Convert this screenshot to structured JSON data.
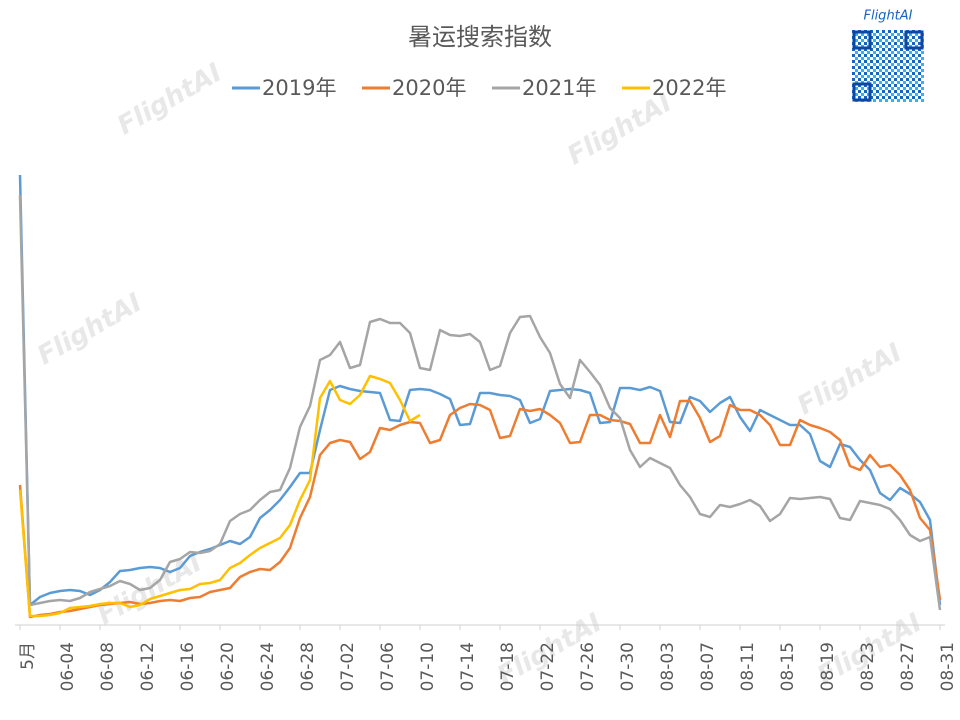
{
  "chart_data": {
    "type": "line",
    "title": "暑运搜索指数",
    "brand": "FlightAI",
    "watermark": "FlightAI",
    "categories": [
      "5月",
      null,
      null,
      null,
      "06-04",
      null,
      null,
      null,
      "06-08",
      null,
      null,
      null,
      "06-12",
      null,
      null,
      null,
      "06-16",
      null,
      null,
      null,
      "06-20",
      null,
      null,
      null,
      "06-24",
      null,
      null,
      null,
      "06-28",
      null,
      null,
      null,
      "07-02",
      null,
      null,
      null,
      "07-06",
      null,
      null,
      null,
      "07-10",
      null,
      null,
      null,
      "07-14",
      null,
      null,
      null,
      "07-18",
      null,
      null,
      null,
      "07-22",
      null,
      null,
      null,
      "07-26",
      null,
      null,
      null,
      "07-30",
      null,
      null,
      null,
      "08-03",
      null,
      null,
      null,
      "08-07",
      null,
      null,
      null,
      "08-11",
      null,
      null,
      null,
      "08-15",
      null,
      null,
      null,
      "08-19",
      null,
      null,
      null,
      "08-23",
      null,
      null,
      null,
      "08-27",
      null,
      null,
      null,
      "08-31"
    ],
    "ylim": [
      0,
      450
    ],
    "legend": "top",
    "series": [
      {
        "name": "2019年",
        "color": "#5b9bd5",
        "values": [
          450,
          20,
          28,
          32,
          34,
          35,
          34,
          30,
          35,
          43,
          54,
          55,
          57,
          58,
          57,
          53,
          57,
          69,
          73,
          76,
          80,
          84,
          81,
          88,
          107,
          115,
          125,
          138,
          152,
          152,
          195,
          235,
          239,
          236,
          234,
          233,
          232,
          205,
          204,
          235,
          236,
          235,
          231,
          226,
          200,
          201,
          232,
          232,
          230,
          229,
          225,
          202,
          206,
          234,
          235,
          236,
          235,
          232,
          202,
          203,
          237,
          237,
          235,
          238,
          234,
          203,
          202,
          228,
          224,
          213,
          222,
          228,
          208,
          194,
          215,
          210,
          205,
          200,
          200,
          191,
          164,
          158,
          181,
          178,
          165,
          155,
          132,
          125,
          137,
          131,
          123,
          105,
          20
        ]
      },
      {
        "name": "2020年",
        "color": "#ed7d31",
        "values": [
          140,
          8,
          10,
          11,
          13,
          14,
          16,
          18,
          20,
          21,
          22,
          23,
          21,
          22,
          24,
          25,
          24,
          27,
          28,
          33,
          35,
          37,
          48,
          53,
          56,
          55,
          63,
          77,
          107,
          128,
          170,
          182,
          185,
          183,
          166,
          173,
          197,
          195,
          200,
          203,
          202,
          182,
          185,
          210,
          217,
          221,
          220,
          215,
          187,
          189,
          216,
          214,
          216,
          210,
          202,
          182,
          183,
          210,
          210,
          205,
          204,
          201,
          182,
          182,
          210,
          188,
          224,
          224,
          207,
          183,
          189,
          220,
          215,
          215,
          210,
          200,
          180,
          180,
          205,
          200,
          197,
          193,
          185,
          159,
          155,
          170,
          158,
          160,
          150,
          135,
          107,
          95,
          25
        ]
      },
      {
        "name": "2021年",
        "color": "#a5a5a5",
        "values": [
          430,
          20,
          22,
          24,
          25,
          24,
          27,
          33,
          36,
          39,
          44,
          41,
          35,
          37,
          45,
          63,
          66,
          73,
          72,
          74,
          81,
          104,
          111,
          115,
          125,
          133,
          135,
          157,
          198,
          219,
          265,
          270,
          283,
          257,
          260,
          303,
          306,
          302,
          302,
          292,
          257,
          255,
          295,
          290,
          289,
          291,
          283,
          255,
          259,
          292,
          308,
          309,
          288,
          272,
          241,
          227,
          265,
          253,
          240,
          217,
          207,
          175,
          158,
          167,
          162,
          157,
          140,
          128,
          111,
          108,
          120,
          118,
          121,
          125,
          119,
          104,
          111,
          127,
          126,
          127,
          128,
          126,
          107,
          105,
          124,
          122,
          120,
          116,
          105,
          90,
          84,
          88,
          15
        ]
      },
      {
        "name": "2022年",
        "color": "#ffc000",
        "values": [
          135,
          9,
          9,
          10,
          12,
          17,
          18,
          19,
          21,
          22,
          22,
          18,
          20,
          26,
          29,
          32,
          35,
          36,
          41,
          42,
          45,
          57,
          62,
          70,
          77,
          82,
          87,
          100,
          125,
          145,
          227,
          244,
          225,
          221,
          230,
          249,
          246,
          242,
          225,
          204,
          210,
          null,
          null,
          null,
          null,
          null,
          null,
          null,
          null,
          null,
          null,
          null,
          null,
          null,
          null,
          null,
          null,
          null,
          null,
          null,
          null,
          null,
          null,
          null,
          null,
          null,
          null,
          null,
          null,
          null,
          null,
          null,
          null,
          null,
          null,
          null,
          null,
          null,
          null,
          null,
          null,
          null,
          null,
          null,
          null,
          null,
          null,
          null,
          null,
          null,
          null,
          null,
          null
        ]
      }
    ]
  }
}
